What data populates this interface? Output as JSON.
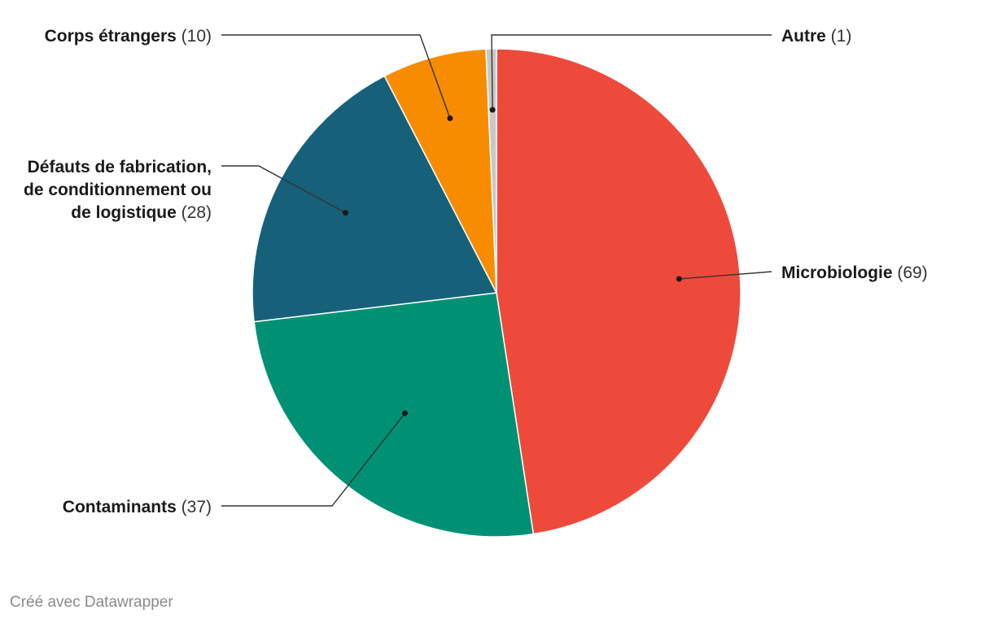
{
  "chart_data": {
    "type": "pie",
    "title": "",
    "slices": [
      {
        "label": "Microbiologie",
        "value": 69,
        "color": "#ee4a3c"
      },
      {
        "label": "Contaminants",
        "value": 37,
        "color": "#009174"
      },
      {
        "label": "Défauts de fabrication, de conditionnement ou de logistique",
        "value": 28,
        "color": "#17607a"
      },
      {
        "label": "Corps étrangers",
        "value": 10,
        "color": "#f88c00"
      },
      {
        "label": "Autre",
        "value": 1,
        "color": "#c8c8c8"
      }
    ],
    "label_lines": {
      "Microbiologie": [
        "Microbiologie"
      ],
      "Contaminants": [
        "Contaminants"
      ],
      "Défauts de fabrication, de conditionnement ou de logistique": [
        "Défauts de fabrication,",
        "de conditionnement ou",
        "de logistique"
      ],
      "Corps étrangers": [
        "Corps étrangers"
      ],
      "Autre": [
        "Autre"
      ]
    },
    "value_format": "({v})"
  },
  "credit": "Créé avec Datawrapper"
}
